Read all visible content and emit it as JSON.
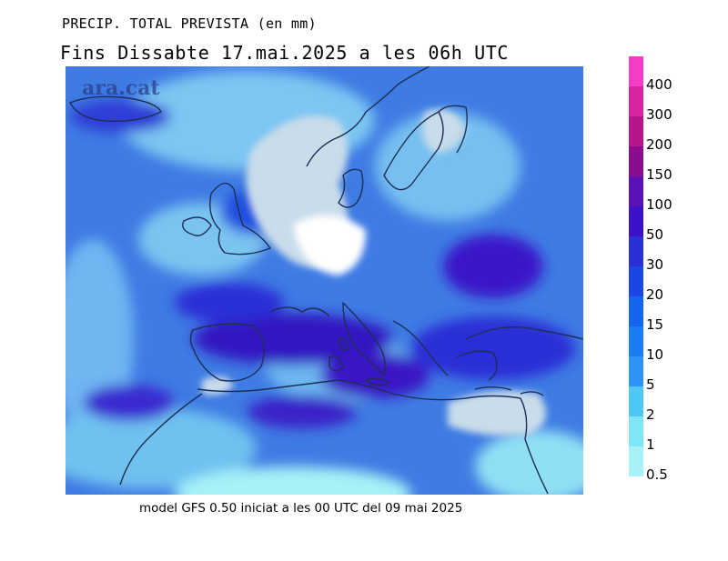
{
  "header": {
    "title": "PRECIP. TOTAL PREVISTA (en mm)",
    "subtitle": "Fins Dissabte  17.mai.2025 a les 06h UTC"
  },
  "watermark": "ara.cat",
  "footer": "model GFS 0.50 iniciat a les 00 UTC del 09 mai 2025",
  "legend": {
    "levels": [
      "400",
      "300",
      "200",
      "150",
      "100",
      "50",
      "30",
      "20",
      "15",
      "10",
      "5",
      "2",
      "1",
      "0.5"
    ],
    "colors": [
      "#f53cc8",
      "#d9239f",
      "#b7158a",
      "#8a0d8f",
      "#5a11b5",
      "#3b12c8",
      "#2a2fd6",
      "#1a46e8",
      "#1565f0",
      "#1a7df5",
      "#2d93f5",
      "#4fc7f2",
      "#7ee6f5",
      "#a6f2f7"
    ]
  },
  "map": {
    "background_color": "#3e7be3",
    "dry_color": "#c9dcea",
    "coast_color": "#1d2f55"
  }
}
